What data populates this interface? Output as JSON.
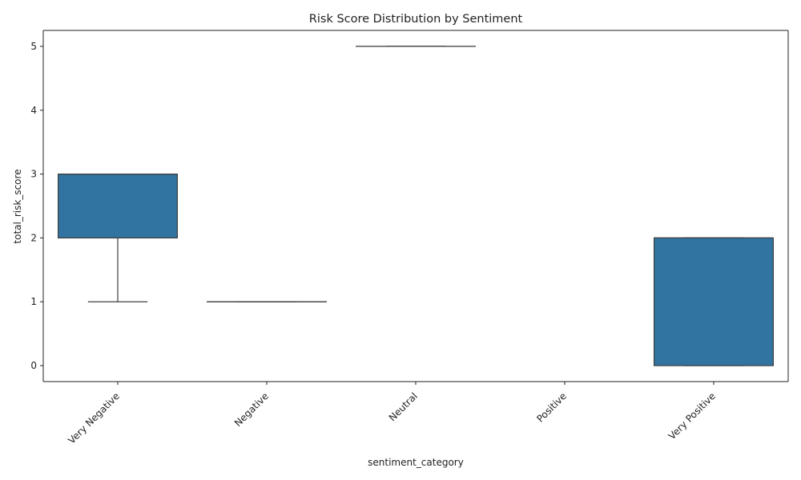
{
  "chart_data": {
    "type": "boxplot",
    "title": "Risk Score Distribution by Sentiment",
    "xlabel": "sentiment_category",
    "ylabel": "total_risk_score",
    "categories": [
      "Very Negative",
      "Negative",
      "Neutral",
      "Positive",
      "Very Positive"
    ],
    "boxes": [
      {
        "category": "Very Negative",
        "whisker_low": 1,
        "q1": 2,
        "median": 3,
        "q3": 3,
        "whisker_high": 3
      },
      {
        "category": "Negative",
        "whisker_low": 1,
        "q1": 1,
        "median": 1,
        "q3": 1,
        "whisker_high": 1
      },
      {
        "category": "Neutral",
        "whisker_low": 5,
        "q1": 5,
        "median": 5,
        "q3": 5,
        "whisker_high": 5
      },
      {
        "category": "Positive",
        "empty": true
      },
      {
        "category": "Very Positive",
        "whisker_low": 0,
        "q1": 0,
        "median": 2,
        "q3": 2,
        "whisker_high": 2
      }
    ],
    "yticks": [
      0,
      1,
      2,
      3,
      4,
      5
    ],
    "ylim": [
      -0.25,
      5.25
    ],
    "box_color": "#3274a1",
    "line_color": "#3f3f3f",
    "grid": false,
    "x_tick_rotation": 45
  }
}
